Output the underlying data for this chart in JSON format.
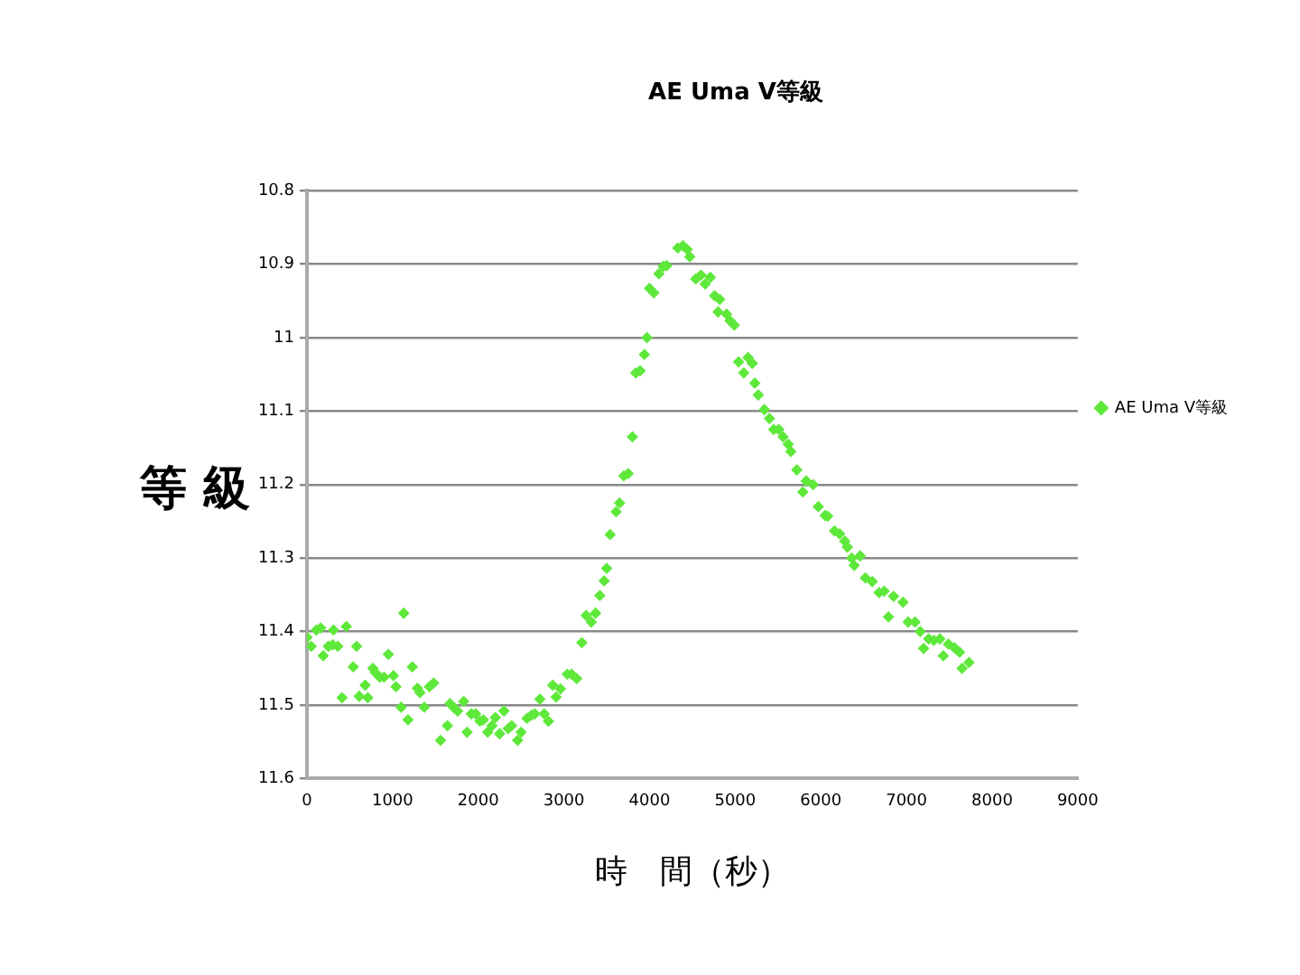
{
  "chart_data": {
    "type": "scatter",
    "title": "AE Uma V等級",
    "xlabel": "時　間（秒）",
    "ylabel": "等 級",
    "xlim": [
      0,
      9000
    ],
    "xticks": [
      0,
      1000,
      2000,
      3000,
      4000,
      5000,
      6000,
      7000,
      8000,
      9000
    ],
    "ylim": [
      11.6,
      10.8
    ],
    "yticks": [
      10.8,
      10.9,
      11,
      11.1,
      11.2,
      11.3,
      11.4,
      11.5,
      11.6
    ],
    "grid": "y",
    "legend": "right",
    "marker": "diamond",
    "series": [
      {
        "name": "AE Uma V等級",
        "color": "#5ee83a",
        "x": [
          0,
          50,
          110,
          160,
          190,
          250,
          310,
          300,
          360,
          410,
          460,
          540,
          580,
          610,
          680,
          710,
          770,
          800,
          850,
          900,
          950,
          1010,
          1040,
          1100,
          1130,
          1180,
          1230,
          1290,
          1320,
          1370,
          1430,
          1480,
          1560,
          1640,
          1670,
          1720,
          1760,
          1830,
          1870,
          1920,
          1970,
          2020,
          2060,
          2110,
          2160,
          2200,
          2250,
          2300,
          2350,
          2390,
          2460,
          2500,
          2570,
          2620,
          2660,
          2720,
          2770,
          2820,
          2870,
          2910,
          2960,
          3040,
          3090,
          3150,
          3210,
          3260,
          3320,
          3370,
          3420,
          3470,
          3500,
          3540,
          3610,
          3650,
          3700,
          3750,
          3800,
          3840,
          3890,
          3940,
          3970,
          4000,
          4050,
          4110,
          4160,
          4200,
          4330,
          4390,
          4440,
          4470,
          4540,
          4600,
          4650,
          4710,
          4760,
          4820,
          4800,
          4900,
          4940,
          4990,
          5040,
          5100,
          5150,
          5200,
          5230,
          5270,
          5340,
          5400,
          5450,
          5510,
          5560,
          5620,
          5650,
          5720,
          5830,
          5790,
          5910,
          5970,
          6050,
          6080,
          6160,
          6220,
          6280,
          6310,
          6360,
          6390,
          6460,
          6520,
          6600,
          6680,
          6740,
          6790,
          6850,
          6960,
          7020,
          7100,
          7160,
          7200,
          7260,
          7320,
          7390,
          7430,
          7490,
          7560,
          7620,
          7650,
          7730
        ],
        "values": [
          11.408,
          11.42,
          11.398,
          11.395,
          11.433,
          11.42,
          11.398,
          11.418,
          11.42,
          11.49,
          11.393,
          11.448,
          11.42,
          11.488,
          11.473,
          11.49,
          11.45,
          11.456,
          11.462,
          11.462,
          11.431,
          11.46,
          11.475,
          11.503,
          11.375,
          11.52,
          11.448,
          11.477,
          11.483,
          11.503,
          11.475,
          11.47,
          11.548,
          11.528,
          11.498,
          11.504,
          11.508,
          11.495,
          11.537,
          11.512,
          11.512,
          11.522,
          11.52,
          11.537,
          11.528,
          11.517,
          11.539,
          11.508,
          11.532,
          11.528,
          11.548,
          11.537,
          11.518,
          11.514,
          11.512,
          11.492,
          11.512,
          11.522,
          11.473,
          11.489,
          11.478,
          11.458,
          11.458,
          11.464,
          11.415,
          11.378,
          11.387,
          11.375,
          11.351,
          11.331,
          11.314,
          11.268,
          11.237,
          11.225,
          11.188,
          11.185,
          11.135,
          11.048,
          11.045,
          11.023,
          11.0,
          10.933,
          10.939,
          10.913,
          10.903,
          10.902,
          10.878,
          10.875,
          10.88,
          10.89,
          10.92,
          10.915,
          10.927,
          10.918,
          10.943,
          10.948,
          10.965,
          10.968,
          10.977,
          10.983,
          11.033,
          11.048,
          11.027,
          11.035,
          11.062,
          11.078,
          11.098,
          11.11,
          11.125,
          11.125,
          11.135,
          11.145,
          11.155,
          11.18,
          11.195,
          11.21,
          11.2,
          11.23,
          11.242,
          11.243,
          11.263,
          11.267,
          11.277,
          11.285,
          11.3,
          11.31,
          11.297,
          11.327,
          11.332,
          11.347,
          11.345,
          11.38,
          11.352,
          11.36,
          11.387,
          11.387,
          11.4,
          11.423,
          11.41,
          11.412,
          11.41,
          11.433,
          11.417,
          11.422,
          11.428,
          11.45,
          11.442
        ]
      }
    ]
  }
}
